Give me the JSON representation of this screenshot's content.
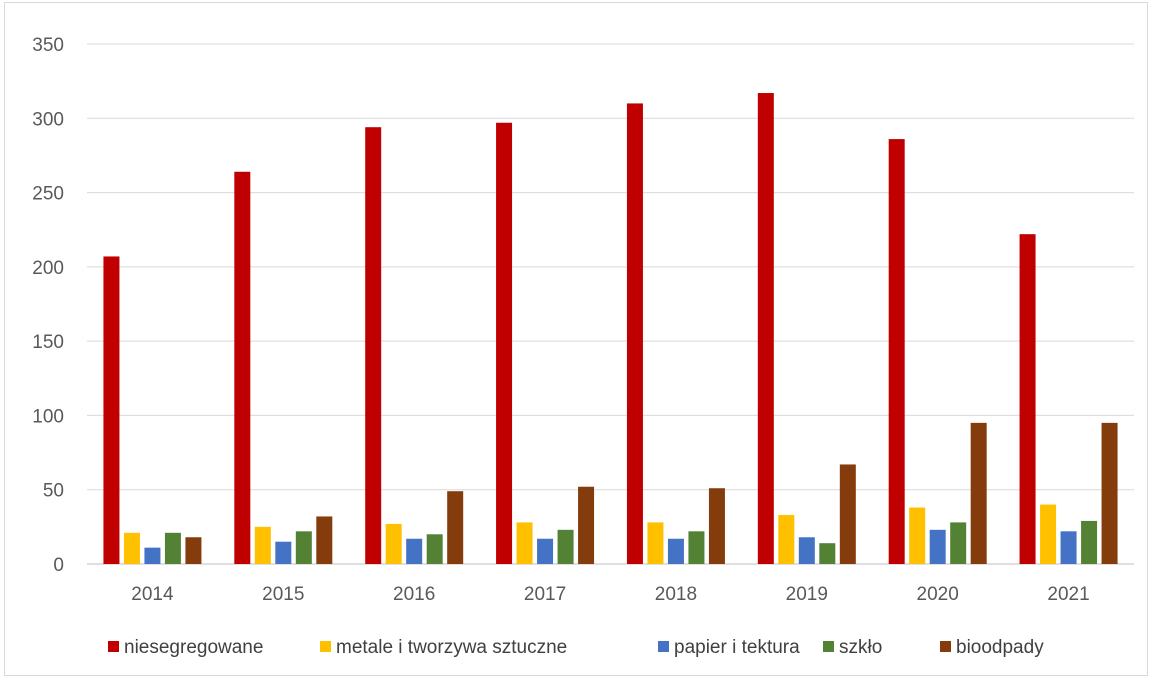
{
  "chart_data": {
    "type": "bar",
    "title": "",
    "xlabel": "",
    "ylabel": "",
    "categories": [
      "2014",
      "2015",
      "2016",
      "2017",
      "2018",
      "2019",
      "2020",
      "2021"
    ],
    "ylim": [
      0,
      350
    ],
    "yticks": [
      "0",
      "50",
      "100",
      "150",
      "200",
      "250",
      "300",
      "350"
    ],
    "grid": true,
    "legend_position": "bottom",
    "series": [
      {
        "name": "niesegregowane",
        "color": "#c00000",
        "values": [
          207,
          264,
          294,
          297,
          310,
          317,
          286,
          222
        ]
      },
      {
        "name": "metale i tworzywa sztuczne",
        "color": "#ffc000",
        "values": [
          21,
          25,
          27,
          28,
          28,
          33,
          38,
          40
        ]
      },
      {
        "name": "papier i tektura",
        "color": "#4472c4",
        "values": [
          11,
          15,
          17,
          17,
          17,
          18,
          23,
          22
        ]
      },
      {
        "name": "szkło",
        "color": "#548235",
        "values": [
          21,
          22,
          20,
          23,
          22,
          14,
          28,
          29
        ]
      },
      {
        "name": "bioodpady",
        "color": "#843c0c",
        "values": [
          18,
          32,
          49,
          52,
          51,
          67,
          95,
          95
        ]
      }
    ]
  }
}
